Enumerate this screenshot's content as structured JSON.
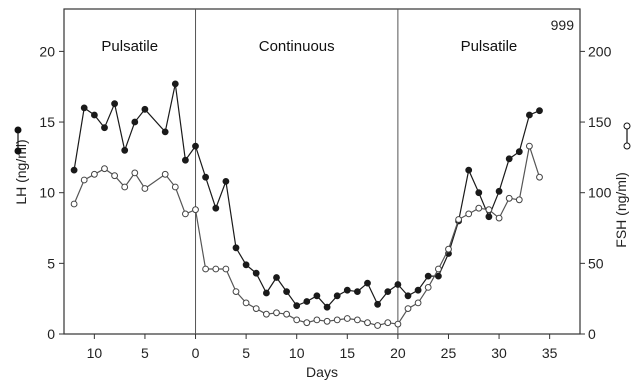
{
  "chart_data": {
    "type": "line",
    "annotation": "999",
    "xlabel": "Days",
    "ylabel_left": "LH (ng/ml)",
    "ylabel_right": "FSH (ng/ml)",
    "x_tick_labels": [
      {
        "x": -10,
        "label": "10"
      },
      {
        "x": -5,
        "label": "5"
      },
      {
        "x": 0,
        "label": "0"
      },
      {
        "x": 5,
        "label": "5"
      },
      {
        "x": 10,
        "label": "10"
      },
      {
        "x": 15,
        "label": "15"
      },
      {
        "x": 20,
        "label": "20"
      },
      {
        "x": 25,
        "label": "25"
      },
      {
        "x": 30,
        "label": "30"
      },
      {
        "x": 35,
        "label": "35"
      }
    ],
    "xlim": [
      -13,
      38
    ],
    "ylim_left": [
      0,
      23
    ],
    "ylim_right": [
      0,
      230
    ],
    "y_ticks_left": [
      0,
      5,
      10,
      15,
      20
    ],
    "y_ticks_right": [
      0,
      50,
      100,
      150,
      200
    ],
    "grid": false,
    "phase_boundaries": [
      0,
      20
    ],
    "regions": [
      {
        "label": "Pulsatile",
        "x": -6.5
      },
      {
        "label": "Continuous",
        "x": 10
      },
      {
        "label": "Pulsatile",
        "x": 29
      }
    ],
    "series": [
      {
        "axis": "left",
        "marker": "filled",
        "x": [
          -12,
          -11,
          -10,
          -9,
          -8,
          -7,
          -6,
          -5,
          -3,
          -2,
          -1,
          0,
          1,
          2,
          3,
          4,
          5,
          6,
          7,
          8,
          9,
          10,
          11,
          12,
          13,
          14,
          15,
          16,
          17,
          18,
          19,
          20,
          21,
          22,
          23,
          24,
          25,
          26,
          27,
          28,
          29,
          30,
          31,
          32,
          33,
          34
        ],
        "values": [
          11.6,
          16.0,
          15.5,
          14.6,
          16.3,
          13.0,
          15.0,
          15.9,
          14.3,
          17.7,
          12.3,
          13.3,
          11.1,
          8.9,
          10.8,
          6.1,
          4.9,
          4.3,
          2.9,
          4.0,
          3.0,
          2.0,
          2.3,
          2.7,
          1.9,
          2.7,
          3.1,
          3.0,
          3.6,
          2.1,
          3.0,
          3.5,
          2.7,
          3.1,
          4.1,
          4.1,
          5.7,
          8.0,
          11.6,
          10.0,
          8.3,
          10.1,
          12.4,
          12.9,
          15.5,
          15.8
        ]
      },
      {
        "axis": "right",
        "marker": "open",
        "x": [
          -12,
          -11,
          -10,
          -9,
          -8,
          -7,
          -6,
          -5,
          -3,
          -2,
          -1,
          0,
          1,
          2,
          3,
          4,
          5,
          6,
          7,
          8,
          9,
          10,
          11,
          12,
          13,
          14,
          15,
          16,
          17,
          18,
          19,
          20,
          21,
          22,
          23,
          24,
          25,
          26,
          27,
          28,
          29,
          30,
          31,
          32,
          33,
          34
        ],
        "values": [
          92,
          109,
          113,
          117,
          112,
          104,
          114,
          103,
          113,
          104,
          85,
          88,
          46,
          46,
          46,
          30,
          22,
          18,
          14,
          15,
          14,
          10,
          8,
          10,
          9,
          10,
          11,
          10,
          8,
          6,
          8,
          7,
          18,
          22,
          33,
          46,
          60,
          81,
          85,
          89,
          88,
          82,
          96,
          95,
          133,
          111
        ]
      }
    ]
  }
}
